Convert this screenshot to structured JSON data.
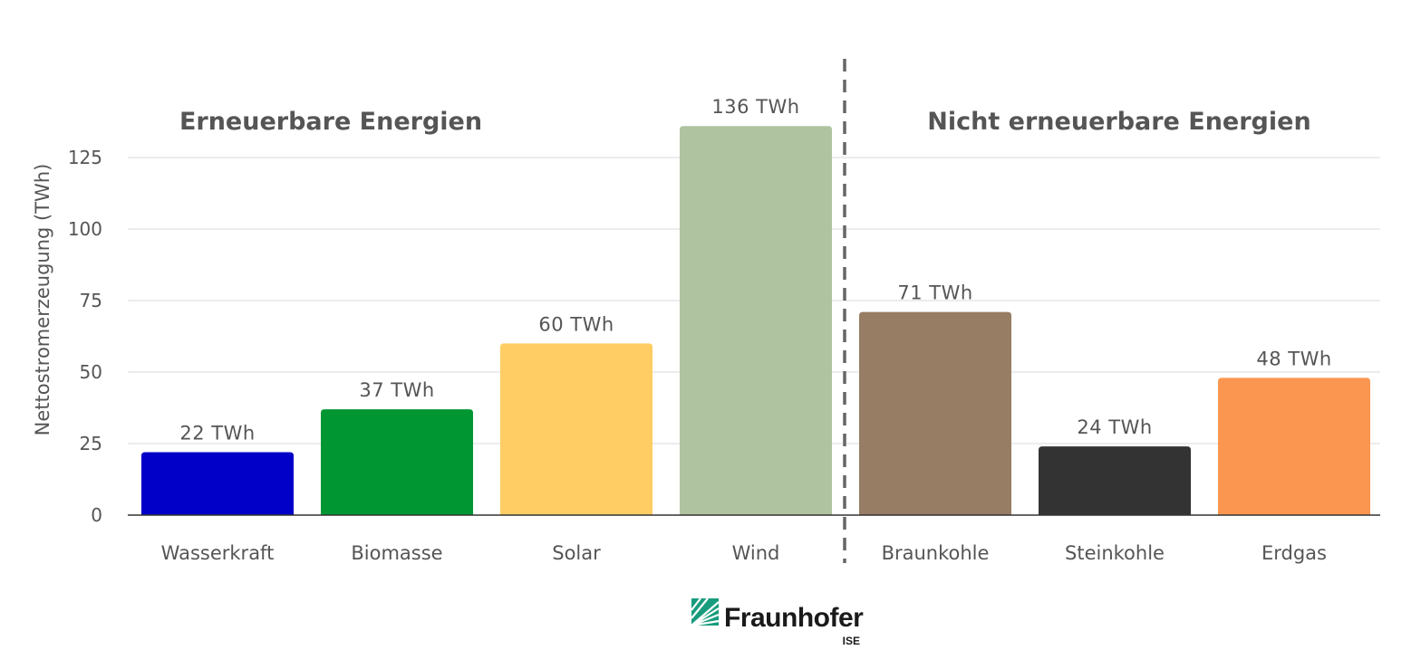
{
  "chart_data": {
    "type": "bar",
    "categories": [
      "Wasserkraft",
      "Biomasse",
      "Solar",
      "Wind",
      "Braunkohle",
      "Steinkohle",
      "Erdgas"
    ],
    "values": [
      22,
      37,
      60,
      136,
      71,
      24,
      48
    ],
    "value_labels": [
      "22 TWh",
      "37 TWh",
      "60 TWh",
      "136 TWh",
      "71 TWh",
      "24 TWh",
      "48 TWh"
    ],
    "colors": [
      "#0000c8",
      "#009632",
      "#ffcd64",
      "#afc3a0",
      "#967d64",
      "#333333",
      "#fa9650"
    ],
    "ylabel": "Nettostromerzeugung (TWh)",
    "ylim": [
      0,
      150
    ],
    "yticks": [
      0,
      25,
      50,
      75,
      100,
      125
    ],
    "grid": true,
    "groups": [
      {
        "label": "Erneuerbare Energien",
        "categories": [
          "Wasserkraft",
          "Biomasse",
          "Solar",
          "Wind"
        ]
      },
      {
        "label": "Nicht erneuerbare Energien",
        "categories": [
          "Braunkohle",
          "Steinkohle",
          "Erdgas"
        ]
      }
    ]
  },
  "logo": {
    "name": "Fraunhofer",
    "sub": "ISE",
    "color": "#179c7d"
  }
}
